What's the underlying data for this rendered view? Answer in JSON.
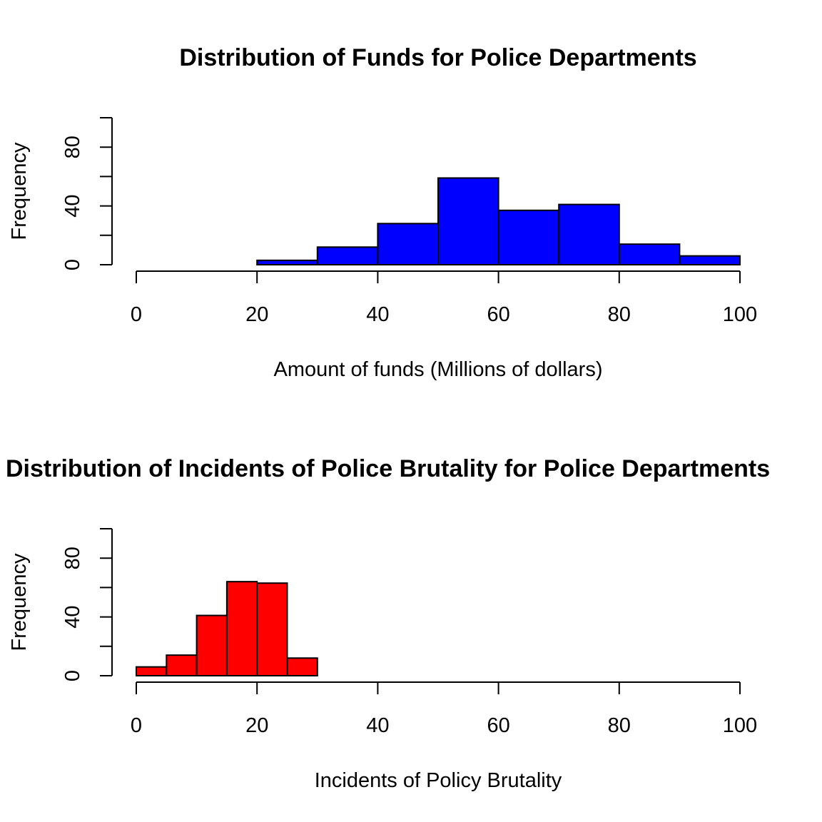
{
  "chart_data": [
    {
      "type": "bar",
      "title": "Distribution of Funds for Police Departments",
      "xlabel": "Amount of funds (Millions of dollars)",
      "ylabel": "Frequency",
      "bar_color": "#0000ff",
      "xlim": [
        0,
        100
      ],
      "ylim": [
        0,
        100
      ],
      "x_ticks": [
        "0",
        "20",
        "40",
        "60",
        "80",
        "100"
      ],
      "y_ticks": [
        "0",
        "40",
        "80"
      ],
      "bins": [
        {
          "start": 20,
          "end": 30,
          "value": 3
        },
        {
          "start": 30,
          "end": 40,
          "value": 12
        },
        {
          "start": 40,
          "end": 50,
          "value": 28
        },
        {
          "start": 50,
          "end": 60,
          "value": 59
        },
        {
          "start": 60,
          "end": 70,
          "value": 37
        },
        {
          "start": 70,
          "end": 80,
          "value": 41
        },
        {
          "start": 80,
          "end": 90,
          "value": 14
        },
        {
          "start": 90,
          "end": 100,
          "value": 6
        }
      ]
    },
    {
      "type": "bar",
      "title": "Distribution of Incidents of Police Brutality  for Police Departments",
      "xlabel": "Incidents of Policy Brutality",
      "ylabel": "Frequency",
      "bar_color": "#ff0000",
      "xlim": [
        0,
        100
      ],
      "ylim": [
        0,
        100
      ],
      "x_ticks": [
        "0",
        "20",
        "40",
        "60",
        "80",
        "100"
      ],
      "y_ticks": [
        "0",
        "40",
        "80"
      ],
      "bins": [
        {
          "start": 0,
          "end": 5,
          "value": 6
        },
        {
          "start": 5,
          "end": 10,
          "value": 14
        },
        {
          "start": 10,
          "end": 15,
          "value": 41
        },
        {
          "start": 15,
          "end": 20,
          "value": 64
        },
        {
          "start": 20,
          "end": 25,
          "value": 63
        },
        {
          "start": 25,
          "end": 30,
          "value": 12
        }
      ]
    }
  ]
}
